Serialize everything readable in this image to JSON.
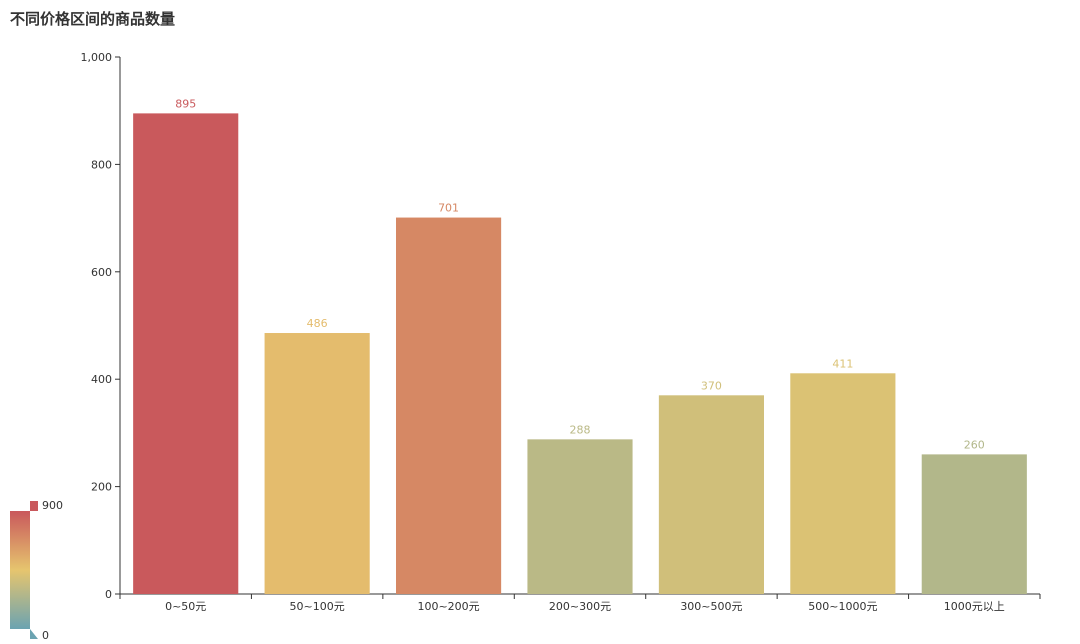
{
  "chart_data": {
    "type": "bar",
    "title": "不同价格区间的商品数量",
    "xlabel": "",
    "ylabel": "",
    "categories": [
      "0~50元",
      "50~100元",
      "100~200元",
      "200~300元",
      "300~500元",
      "500~1000元",
      "1000元以上"
    ],
    "values": [
      895,
      486,
      701,
      288,
      370,
      411,
      260
    ],
    "ylim": [
      0,
      1000
    ],
    "yticks": [
      0,
      200,
      400,
      600,
      800,
      1000
    ],
    "ytick_labels": [
      "0",
      "200",
      "400",
      "600",
      "800",
      "1,000"
    ],
    "grid": false,
    "visual_map": {
      "min": 0,
      "max": 900,
      "min_label": "0",
      "max_label": "900",
      "colors": [
        "#6ba3b1",
        "#e6c56e",
        "#c9585c"
      ],
      "placement": "bottom-left"
    }
  }
}
